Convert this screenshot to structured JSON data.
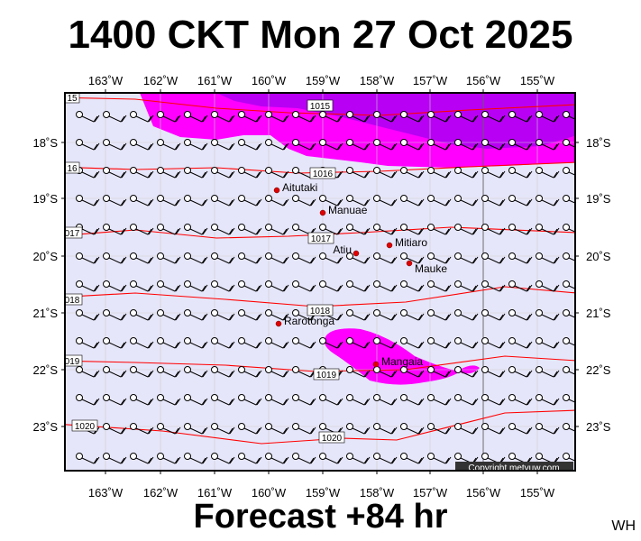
{
  "title": "1400 CKT Mon 27 Oct 2025",
  "footer": "Forecast +84 hr",
  "initials": "WH",
  "copyright": "Copyright metvuw.com",
  "lon_labels": [
    "163˚W",
    "162˚W",
    "161˚W",
    "160˚W",
    "159˚W",
    "158˚W",
    "157˚W",
    "156˚W",
    "155˚W"
  ],
  "lat_labels": [
    "18˚S",
    "19˚S",
    "20˚S",
    "21˚S",
    "22˚S",
    "23˚S"
  ],
  "isobar_labels": [
    "1015",
    "1016",
    "1017",
    "1018",
    "1019",
    "1020"
  ],
  "isobar_edge_labels": [
    "15",
    "16",
    "017",
    "018",
    "019",
    "1020"
  ],
  "islands": [
    "Aitutaki",
    "Manuae",
    "Mitiaro",
    "Atiu",
    "Mauke",
    "Rarotonga",
    "Mangaia"
  ],
  "colors": {
    "background": "#e6e6fa",
    "rain_light": "#ff00ff",
    "rain_heavy": "#a000f0",
    "isobar": "#ff0000",
    "island": "#e00000"
  }
}
